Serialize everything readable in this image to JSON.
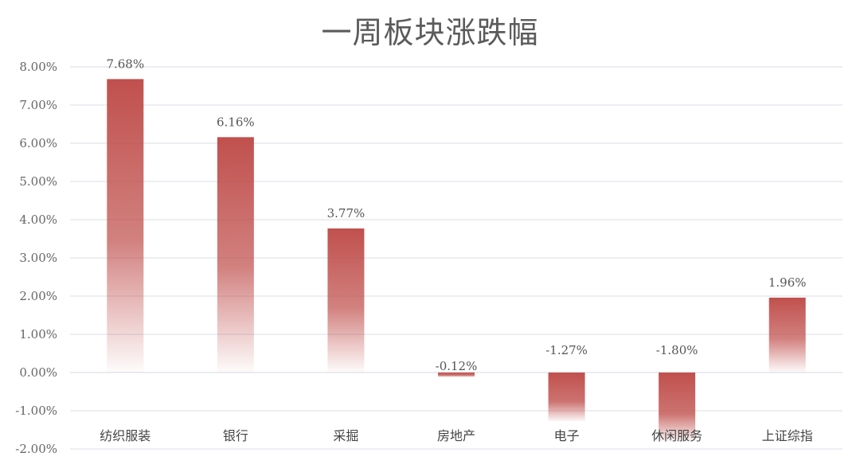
{
  "chart_data": {
    "type": "bar",
    "title": "一周板块涨跌幅",
    "categories": [
      "纺织服装",
      "银行",
      "采掘",
      "房地产",
      "电子",
      "休闲服务",
      "上证综指"
    ],
    "values": [
      7.68,
      6.16,
      3.77,
      -0.12,
      -1.27,
      -1.8,
      1.96
    ],
    "data_labels": [
      "7.68%",
      "6.16%",
      "3.77%",
      "-0.12%",
      "-1.27%",
      "-1.80%",
      "1.96%"
    ],
    "y_ticks": [
      8,
      7,
      6,
      5,
      4,
      3,
      2,
      1,
      0,
      -1,
      -2
    ],
    "y_tick_labels": [
      "8.00%",
      "7.00%",
      "6.00%",
      "5.00%",
      "4.00%",
      "3.00%",
      "2.00%",
      "1.00%",
      "0.00%",
      "-1.00%",
      "-2.00%"
    ],
    "ylim": [
      -2,
      8
    ],
    "xlabel": "",
    "ylabel": "",
    "grid": true,
    "legend": "none",
    "colors": {
      "bar_top": "#c0504d",
      "bar_fade": "#ffffff",
      "title": "#5b5b5b",
      "grid": "#d9dde6"
    }
  }
}
